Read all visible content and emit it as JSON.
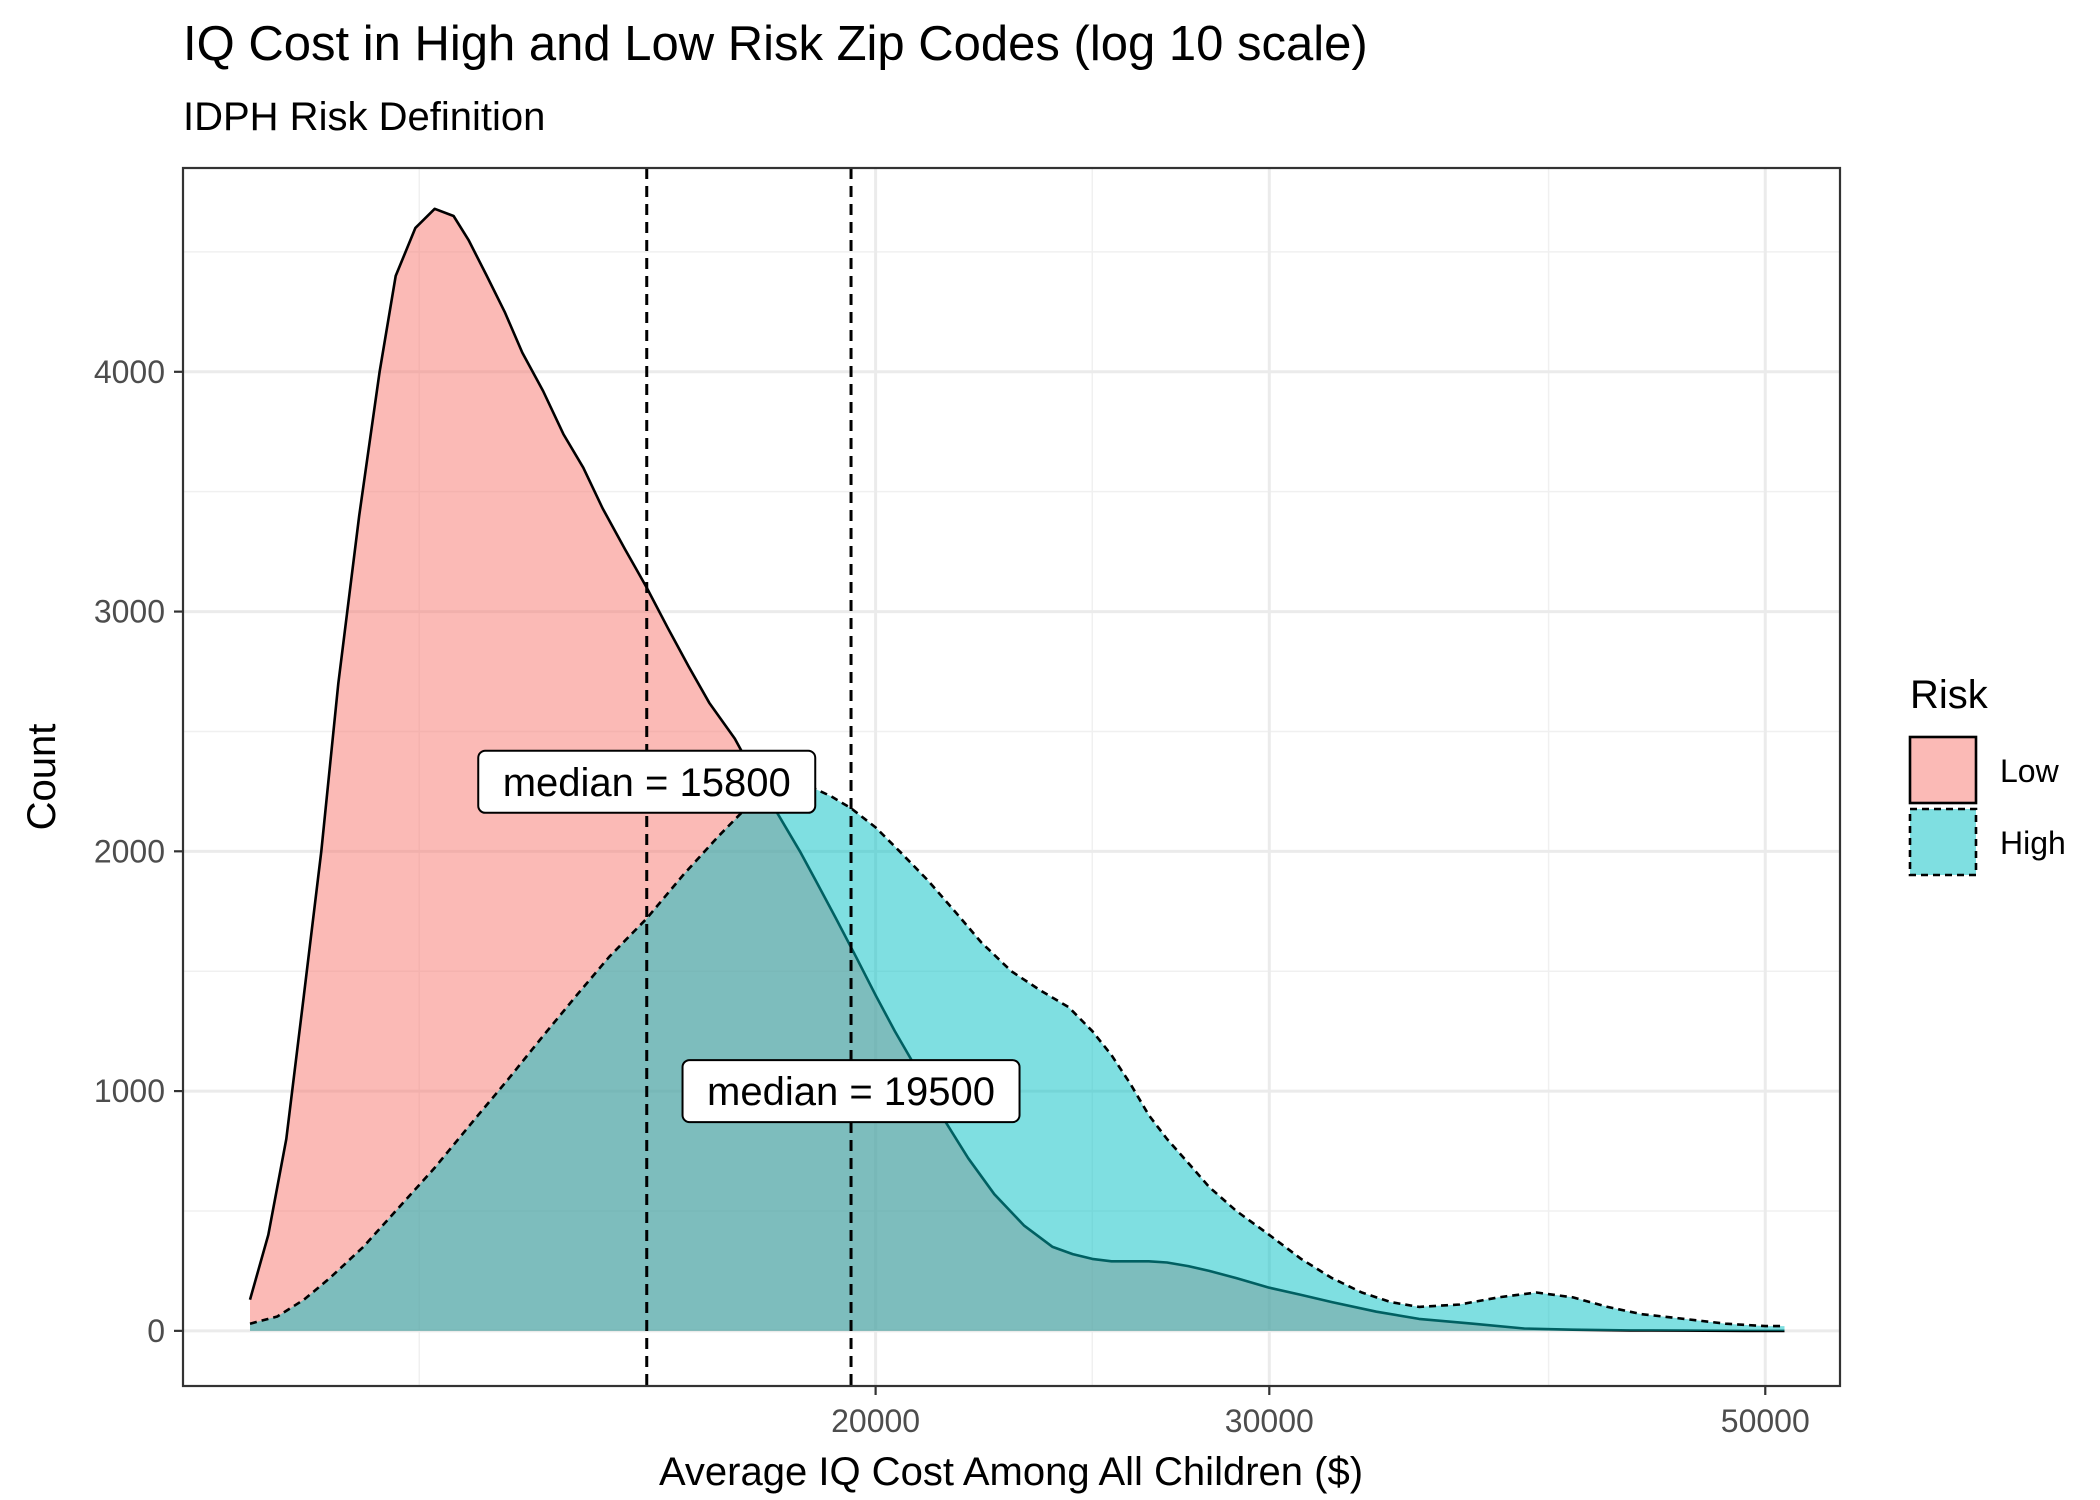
{
  "chart_data": {
    "type": "area",
    "title": "IQ Cost in High and Low Risk Zip Codes (log 10 scale)",
    "subtitle": "IDPH Risk Definition",
    "xlabel": "Average IQ Cost Among All Children ($)",
    "ylabel": "Count",
    "x_scale": "log10",
    "xlim": [
      9800,
      54000
    ],
    "ylim": [
      -230,
      4850
    ],
    "x_ticks": [
      20000,
      30000,
      50000
    ],
    "x_tick_labels": [
      "20000",
      "30000",
      "50000"
    ],
    "x_minor_gridlines": [
      12500,
      25000,
      40000
    ],
    "y_ticks": [
      0,
      1000,
      2000,
      3000,
      4000
    ],
    "y_tick_labels": [
      "0",
      "1000",
      "2000",
      "3000",
      "4000"
    ],
    "grid": true,
    "legend": {
      "title": "Risk",
      "placement": "right",
      "entries": [
        {
          "label": "Low",
          "fill": "#F8766D",
          "line": "solid"
        },
        {
          "label": "High",
          "fill": "#00BFC4",
          "line": "dashed"
        }
      ]
    },
    "series": [
      {
        "name": "Low",
        "fill": "#F8766D",
        "line": "solid",
        "x": [
          10500,
          10700,
          10900,
          11100,
          11300,
          11500,
          11750,
          12000,
          12200,
          12450,
          12700,
          12950,
          13150,
          13400,
          13650,
          13900,
          14200,
          14500,
          14800,
          15100,
          15450,
          15800,
          16150,
          16500,
          16850,
          17300,
          17700,
          18100,
          18500,
          18800,
          19200,
          19600,
          20000,
          20400,
          20900,
          21400,
          22000,
          22600,
          23300,
          24000,
          24500,
          25000,
          25500,
          26000,
          26500,
          27000,
          27600,
          28200,
          29000,
          30000,
          31000,
          32000,
          33500,
          35000,
          37000,
          39000,
          41000,
          43500,
          46000,
          49000,
          51000
        ],
        "y": [
          130,
          400,
          800,
          1400,
          2000,
          2700,
          3400,
          4000,
          4400,
          4600,
          4680,
          4650,
          4550,
          4400,
          4250,
          4080,
          3920,
          3740,
          3600,
          3430,
          3260,
          3100,
          2930,
          2770,
          2620,
          2470,
          2300,
          2150,
          2000,
          1880,
          1720,
          1560,
          1400,
          1250,
          1080,
          900,
          720,
          570,
          440,
          350,
          320,
          300,
          290,
          290,
          290,
          285,
          270,
          250,
          220,
          180,
          150,
          120,
          80,
          50,
          30,
          10,
          5,
          2,
          1,
          0,
          0
        ]
      },
      {
        "name": "High",
        "fill": "#00BFC4",
        "line": "dashed",
        "x": [
          10500,
          10800,
          11100,
          11400,
          11800,
          12200,
          12700,
          13200,
          13700,
          14200,
          14700,
          15200,
          15800,
          16400,
          17000,
          17500,
          18000,
          18400,
          18800,
          19100,
          19500,
          20000,
          20500,
          21100,
          21700,
          22300,
          23000,
          23700,
          24400,
          25000,
          25500,
          26000,
          26500,
          27000,
          27600,
          28200,
          29000,
          30000,
          31000,
          32000,
          33000,
          34000,
          35000,
          36500,
          38000,
          39500,
          41000,
          42500,
          44000,
          46000,
          48000,
          50000,
          51000
        ],
        "y": [
          30,
          60,
          130,
          220,
          350,
          500,
          680,
          870,
          1050,
          1230,
          1400,
          1560,
          1720,
          1900,
          2060,
          2180,
          2260,
          2280,
          2260,
          2230,
          2180,
          2100,
          2000,
          1880,
          1750,
          1620,
          1500,
          1420,
          1350,
          1250,
          1150,
          1030,
          900,
          800,
          700,
          600,
          500,
          400,
          300,
          220,
          160,
          120,
          100,
          110,
          140,
          160,
          140,
          100,
          70,
          50,
          30,
          20,
          20
        ]
      }
    ],
    "median_lines": [
      15800,
      19500
    ],
    "annotations": [
      {
        "text": "median = 15800",
        "x": 15800,
        "y": 2290
      },
      {
        "text": "median = 19500",
        "x": 19500,
        "y": 1000
      }
    ]
  }
}
